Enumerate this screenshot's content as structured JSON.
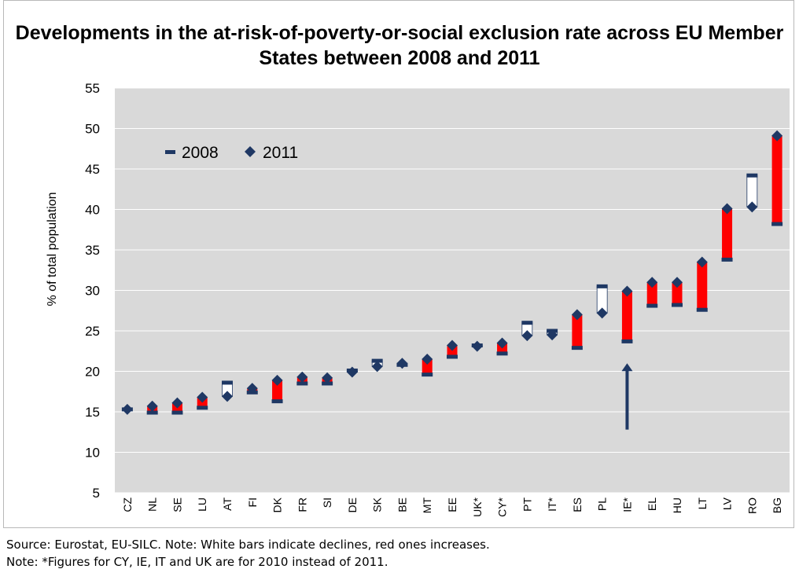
{
  "chart_data": {
    "type": "range",
    "title": "Developments in the at-risk-of-poverty-or-social exclusion rate across EU Member States between 2008 and 2011",
    "ylabel": "% of total population",
    "xlabel": "",
    "ylim": [
      5,
      55
    ],
    "yticks": [
      5,
      10,
      15,
      20,
      25,
      30,
      35,
      40,
      45,
      50,
      55
    ],
    "grid": true,
    "legend_position": "top-left",
    "categories": [
      "CZ",
      "NL",
      "SE",
      "LU",
      "AT",
      "FI",
      "DK",
      "FR",
      "SI",
      "DE",
      "SK",
      "BE",
      "MT",
      "EE",
      "UK*",
      "CY*",
      "PT",
      "IT*",
      "ES",
      "PL",
      "IE*",
      "EL",
      "HU",
      "LT",
      "LV",
      "RO",
      "BG"
    ],
    "series": [
      {
        "name": "2008",
        "values": [
          15.3,
          14.9,
          14.9,
          15.5,
          18.6,
          17.4,
          16.3,
          18.5,
          18.5,
          20.1,
          21.3,
          20.8,
          19.6,
          21.8,
          23.2,
          22.2,
          26.0,
          25.0,
          22.9,
          30.5,
          23.7,
          28.1,
          28.2,
          27.6,
          33.8,
          44.2,
          38.2
        ]
      },
      {
        "name": "2011",
        "values": [
          15.3,
          15.7,
          16.1,
          16.8,
          16.9,
          17.9,
          18.9,
          19.3,
          19.2,
          19.9,
          20.6,
          21.0,
          21.5,
          23.2,
          23.1,
          23.5,
          24.4,
          24.5,
          27.0,
          27.2,
          29.9,
          31.0,
          31.0,
          33.5,
          40.1,
          40.3,
          49.1
        ]
      }
    ],
    "annotations": [
      {
        "type": "arrow",
        "category": "IE*",
        "from": 12.8,
        "to": 21.0
      }
    ],
    "colors": {
      "increase": "#ff0000",
      "decline": "#ffffff",
      "marker": "#1f3864",
      "plot_background": "#d9d9d9",
      "grid": "#ffffff"
    }
  },
  "legend": {
    "label_2008": "2008",
    "label_2011": "2011"
  },
  "notes": {
    "source": "Source: Eurostat, EU-SILC. Note: White bars indicate declines, red ones increases.",
    "figures": "Note: *Figures for CY, IE, IT and UK are for 2010 instead of 2011."
  }
}
